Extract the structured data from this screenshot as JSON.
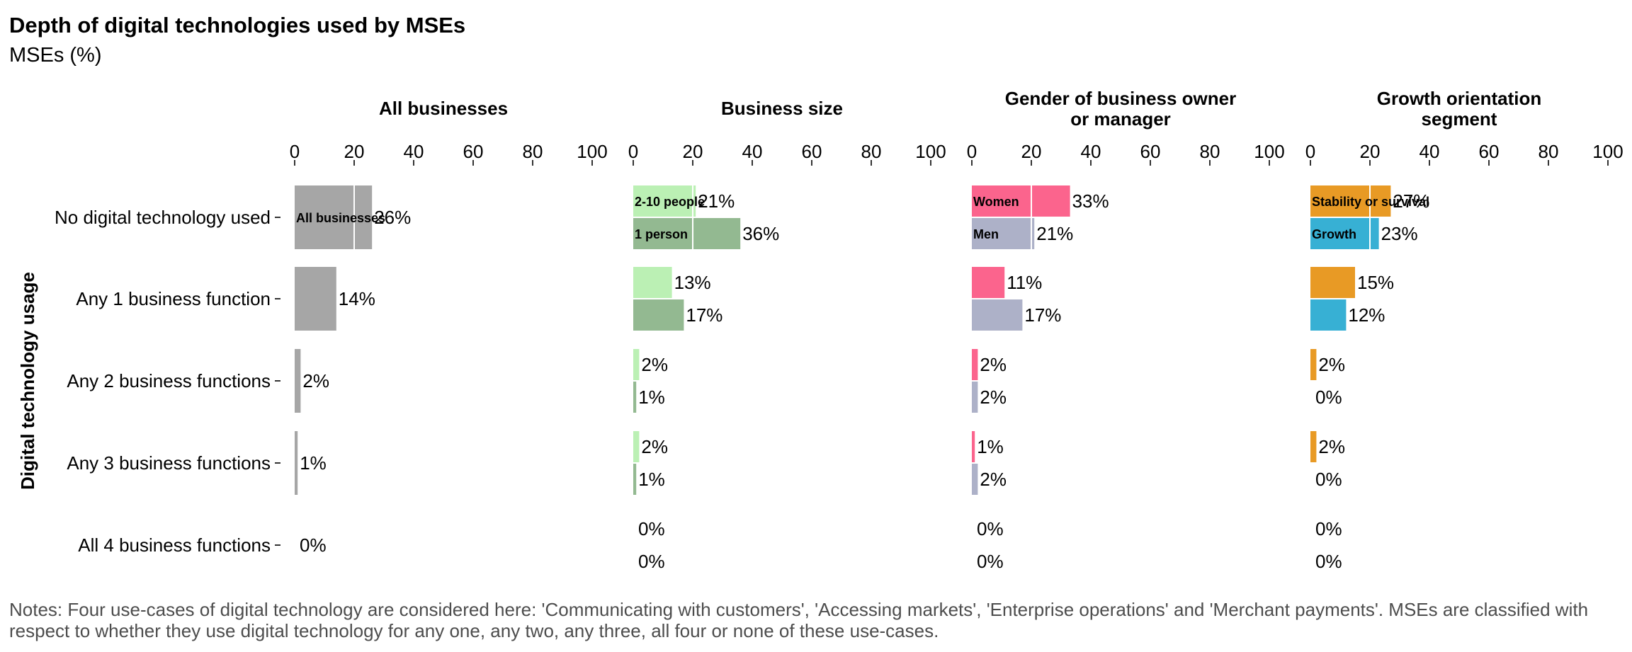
{
  "title": "Depth of digital technologies used by MSEs",
  "subtitle": "MSEs (%)",
  "notes": "Notes: Four use-cases of digital technology are considered here: 'Communicating with customers', 'Accessing markets', 'Enterprise operations' and 'Merchant payments'. MSEs are classified with respect to whether they use digital technology for any one, any two, any three, all four or none of these use-cases.",
  "chart_data": {
    "type": "bar",
    "orientation": "horizontal",
    "ylabel": "Digital technology usage",
    "categories": [
      "No digital technology used",
      "Any 1 business function",
      "Any 2 business functions",
      "Any 3 business functions",
      "All 4 business functions"
    ],
    "xlim": [
      0,
      100
    ],
    "x_ticks": [
      0,
      20,
      40,
      60,
      80,
      100
    ],
    "value_suffix": "%",
    "panels": [
      {
        "title": "All businesses",
        "series": [
          {
            "name": "All businesses",
            "color": "#a6a6a6",
            "values": [
              26,
              14,
              2,
              1,
              0
            ]
          }
        ]
      },
      {
        "title": "Business size",
        "series": [
          {
            "name": "2-10 people",
            "color": "#bbf0b4",
            "values": [
              21,
              13,
              2,
              2,
              0
            ]
          },
          {
            "name": "1 person",
            "color": "#93b991",
            "values": [
              36,
              17,
              1,
              1,
              0
            ]
          }
        ]
      },
      {
        "title": "Gender of business owner or manager",
        "series": [
          {
            "name": "Women",
            "color": "#fb648d",
            "values": [
              33,
              11,
              2,
              1,
              0
            ]
          },
          {
            "name": "Men",
            "color": "#adb1c8",
            "values": [
              21,
              17,
              2,
              2,
              0
            ]
          }
        ]
      },
      {
        "title": "Growth orientation segment",
        "series": [
          {
            "name": "Stability or survival",
            "color": "#e89a25",
            "values": [
              27,
              15,
              2,
              2,
              0
            ]
          },
          {
            "name": "Growth",
            "color": "#37b0d4",
            "values": [
              23,
              12,
              0,
              0,
              0
            ]
          }
        ]
      }
    ]
  }
}
